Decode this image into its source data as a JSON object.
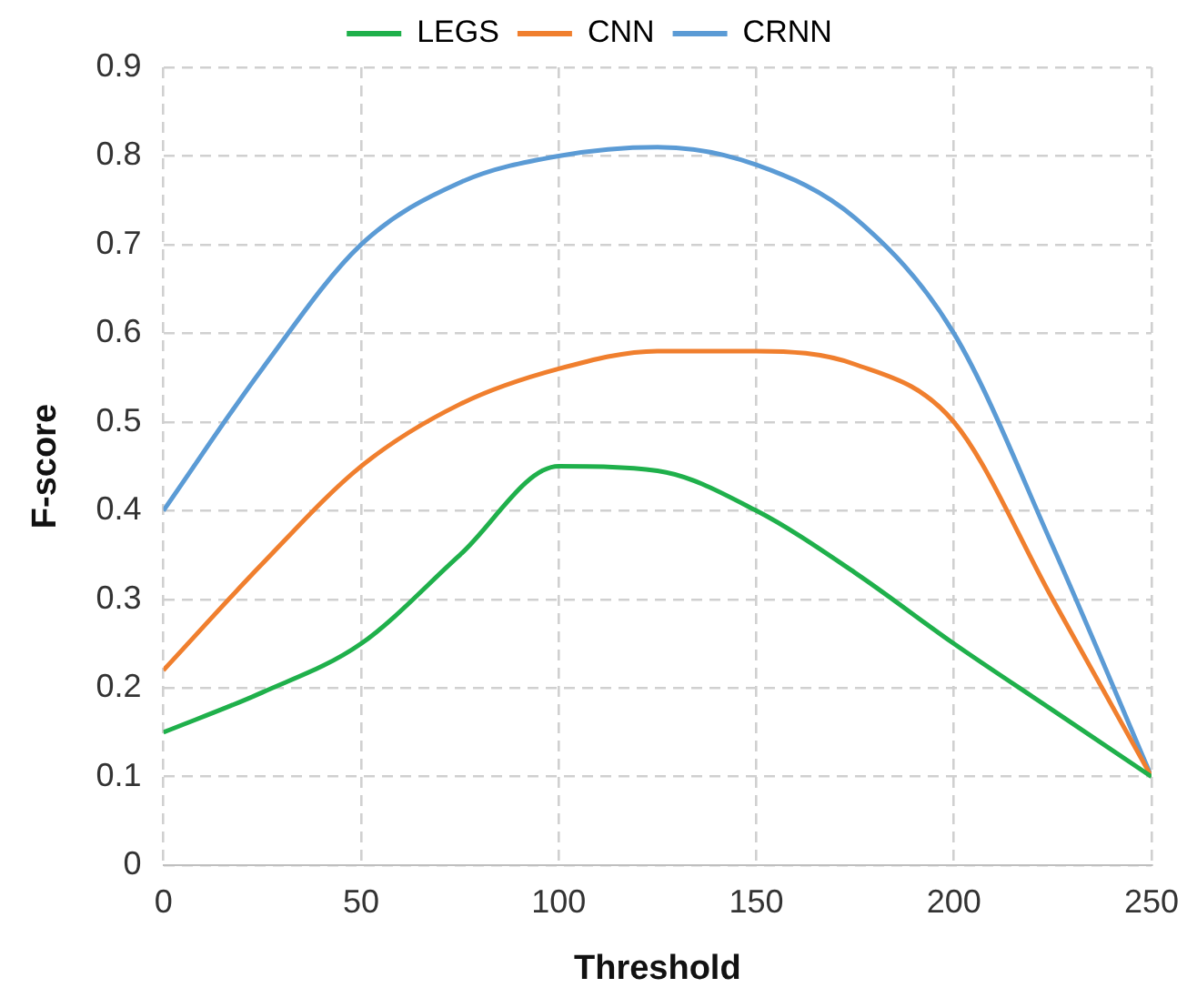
{
  "chart_data": {
    "type": "line",
    "xlabel": "Threshold",
    "ylabel": "F-score",
    "x": [
      0,
      25,
      50,
      75,
      100,
      125,
      150,
      175,
      200,
      225,
      250
    ],
    "series": [
      {
        "name": "LEGS",
        "color": "#1fb04b",
        "values": [
          0.15,
          0.195,
          0.25,
          0.35,
          0.45,
          0.445,
          0.4,
          0.33,
          0.25,
          0.175,
          0.1
        ]
      },
      {
        "name": "CNN",
        "color": "#f07f2e",
        "values": [
          0.22,
          0.34,
          0.45,
          0.52,
          0.56,
          0.58,
          0.58,
          0.565,
          0.5,
          0.3,
          0.1
        ]
      },
      {
        "name": "CRNN",
        "color": "#5b9bd5",
        "values": [
          0.4,
          0.56,
          0.7,
          0.77,
          0.8,
          0.81,
          0.79,
          0.73,
          0.6,
          0.36,
          0.1
        ]
      }
    ],
    "xlim": [
      0,
      250
    ],
    "xticks": [
      0,
      50,
      100,
      150,
      200,
      250
    ],
    "ylim": [
      0,
      0.9
    ],
    "yticks": [
      0,
      0.1,
      0.2,
      0.3,
      0.4,
      0.5,
      0.6,
      0.7,
      0.8,
      0.9
    ],
    "grid": true,
    "legend": "top",
    "marker": "none",
    "line_style": "solid"
  }
}
